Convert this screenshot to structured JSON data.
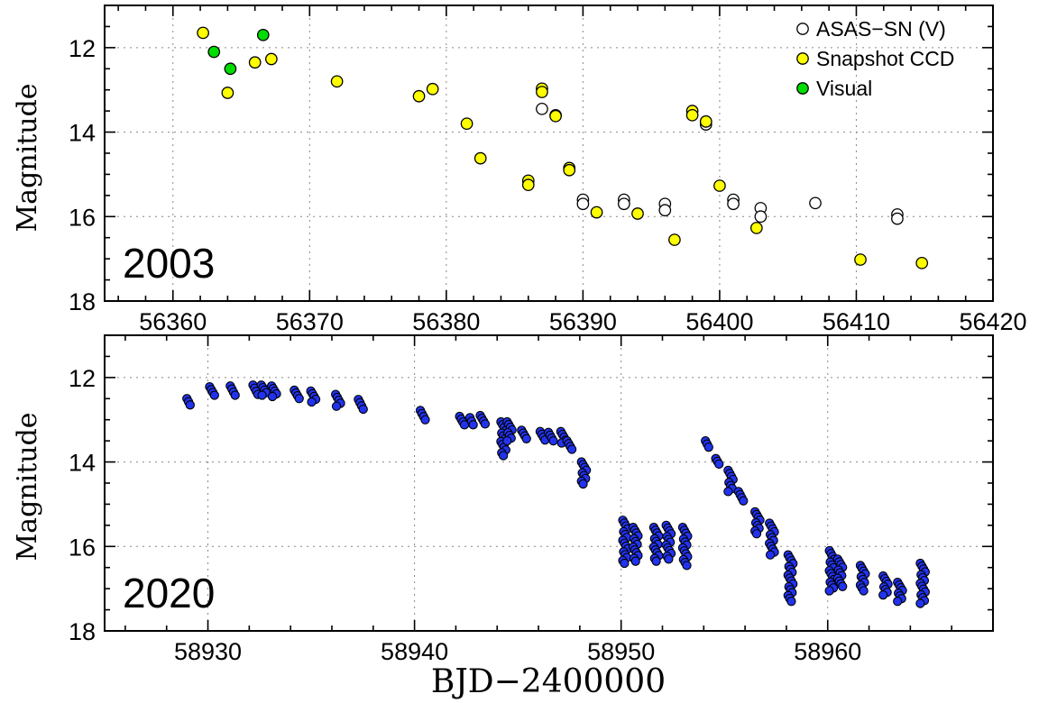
{
  "chart_data": [
    {
      "type": "scatter",
      "panel_label": "2003",
      "ylabel": "Magnitude",
      "xlim": [
        56355,
        56420
      ],
      "ylim": [
        18,
        11
      ],
      "y_inverted": true,
      "xticks": [
        56360,
        56370,
        56380,
        56390,
        56400,
        56410,
        56420
      ],
      "yticks": [
        12,
        14,
        16,
        18
      ],
      "grid": true,
      "legend_position": "top-right",
      "series": [
        {
          "name": "ASAS−SN (V)",
          "marker": "open-circle",
          "color": "#ffffff",
          "points": [
            [
              56387.0,
              13.45
            ],
            [
              56388.0,
              13.6
            ],
            [
              56390.0,
              15.6
            ],
            [
              56390.0,
              15.7
            ],
            [
              56393.0,
              15.6
            ],
            [
              56393.0,
              15.7
            ],
            [
              56396.0,
              15.7
            ],
            [
              56396.0,
              15.85
            ],
            [
              56399.0,
              13.75
            ],
            [
              56399.0,
              13.82
            ],
            [
              56401.0,
              15.6
            ],
            [
              56401.0,
              15.7
            ],
            [
              56403.0,
              15.8
            ],
            [
              56403.0,
              16.0
            ],
            [
              56407.0,
              15.68
            ],
            [
              56413.0,
              15.95
            ],
            [
              56413.0,
              16.05
            ]
          ]
        },
        {
          "name": "Snapshot CCD",
          "marker": "filled-circle",
          "color": "#ffff00",
          "points": [
            [
              56362.2,
              11.65
            ],
            [
              56364.0,
              13.07
            ],
            [
              56366.0,
              12.35
            ],
            [
              56367.2,
              12.27
            ],
            [
              56372.0,
              12.8
            ],
            [
              56378.0,
              13.15
            ],
            [
              56379.0,
              12.98
            ],
            [
              56381.5,
              13.8
            ],
            [
              56382.5,
              14.62
            ],
            [
              56386.0,
              15.15
            ],
            [
              56386.0,
              15.25
            ],
            [
              56387.0,
              12.97
            ],
            [
              56387.0,
              13.05
            ],
            [
              56388.0,
              13.62
            ],
            [
              56389.0,
              14.85
            ],
            [
              56389.0,
              14.9
            ],
            [
              56391.0,
              15.9
            ],
            [
              56394.0,
              15.93
            ],
            [
              56396.7,
              16.55
            ],
            [
              56398.0,
              13.5
            ],
            [
              56398.0,
              13.6
            ],
            [
              56399.0,
              13.75
            ],
            [
              56400.0,
              15.27
            ],
            [
              56402.7,
              16.27
            ],
            [
              56410.3,
              17.02
            ],
            [
              56414.8,
              17.1
            ]
          ]
        },
        {
          "name": "Visual",
          "marker": "filled-circle",
          "color": "#00dd00",
          "points": [
            [
              56363.0,
              12.1
            ],
            [
              56364.2,
              12.5
            ],
            [
              56366.6,
              11.7
            ]
          ]
        }
      ]
    },
    {
      "type": "scatter",
      "panel_label": "2020",
      "xlabel": "BJD−2400000",
      "ylabel": "Magnitude",
      "xlim": [
        58925,
        58968
      ],
      "ylim": [
        18,
        11
      ],
      "y_inverted": true,
      "xticks": [
        58930,
        58940,
        58950,
        58960
      ],
      "yticks": [
        12,
        14,
        16,
        18
      ],
      "grid": true,
      "series": [
        {
          "marker": "filled-circle",
          "color": "#2233ee",
          "clusters": [
            {
              "x": 58929.1,
              "y": [
                12.5,
                12.65
              ]
            },
            {
              "x": 58930.2,
              "y": [
                12.22,
                12.42
              ]
            },
            {
              "x": 58931.2,
              "y": [
                12.2,
                12.42
              ]
            },
            {
              "x": 58932.3,
              "y": [
                12.18,
                12.4
              ]
            },
            {
              "x": 58932.7,
              "y": [
                12.18,
                12.42
              ]
            },
            {
              "x": 58933.2,
              "y": [
                12.2,
                12.45
              ]
            },
            {
              "x": 58934.3,
              "y": [
                12.3,
                12.5
              ]
            },
            {
              "x": 58935.1,
              "y": [
                12.32,
                12.58
              ]
            },
            {
              "x": 58936.3,
              "y": [
                12.4,
                12.68
              ]
            },
            {
              "x": 58937.4,
              "y": [
                12.52,
                12.75
              ]
            },
            {
              "x": 58940.4,
              "y": [
                12.78,
                13.0
              ]
            },
            {
              "x": 58942.3,
              "y": [
                12.92,
                13.12
              ]
            },
            {
              "x": 58942.8,
              "y": [
                12.95,
                13.12
              ]
            },
            {
              "x": 58943.3,
              "y": [
                12.9,
                13.1
              ]
            },
            {
              "x": 58944.3,
              "y": [
                13.05,
                13.85
              ]
            },
            {
              "x": 58944.6,
              "y": [
                13.05,
                13.5
              ]
            },
            {
              "x": 58945.3,
              "y": [
                13.25,
                13.45
              ]
            },
            {
              "x": 58946.2,
              "y": [
                13.28,
                13.48
              ]
            },
            {
              "x": 58946.6,
              "y": [
                13.3,
                13.5
              ]
            },
            {
              "x": 58947.2,
              "y": [
                13.28,
                13.55
              ]
            },
            {
              "x": 58947.5,
              "y": [
                13.5,
                13.7
              ]
            },
            {
              "x": 58948.2,
              "y": [
                14.0,
                14.52
              ]
            },
            {
              "x": 58950.2,
              "y": [
                15.38,
                16.4
              ]
            },
            {
              "x": 58950.7,
              "y": [
                15.55,
                16.35
              ]
            },
            {
              "x": 58951.7,
              "y": [
                15.55,
                16.35
              ]
            },
            {
              "x": 58952.3,
              "y": [
                15.5,
                16.3
              ]
            },
            {
              "x": 58953.1,
              "y": [
                15.55,
                16.45
              ]
            },
            {
              "x": 58954.2,
              "y": [
                13.5,
                13.65
              ]
            },
            {
              "x": 58954.7,
              "y": [
                13.92,
                14.05
              ]
            },
            {
              "x": 58955.3,
              "y": [
                14.2,
                14.7
              ]
            },
            {
              "x": 58955.8,
              "y": [
                14.7,
                14.92
              ]
            },
            {
              "x": 58956.6,
              "y": [
                15.18,
                15.7
              ]
            },
            {
              "x": 58957.3,
              "y": [
                15.45,
                16.2
              ]
            },
            {
              "x": 58958.2,
              "y": [
                16.2,
                17.3
              ]
            },
            {
              "x": 58960.2,
              "y": [
                16.1,
                17.05
              ]
            },
            {
              "x": 58960.6,
              "y": [
                16.3,
                16.95
              ]
            },
            {
              "x": 58961.7,
              "y": [
                16.45,
                17.05
              ]
            },
            {
              "x": 58962.8,
              "y": [
                16.7,
                17.15
              ]
            },
            {
              "x": 58963.5,
              "y": [
                16.85,
                17.3
              ]
            },
            {
              "x": 58964.6,
              "y": [
                16.4,
                17.35
              ]
            }
          ]
        }
      ]
    }
  ]
}
